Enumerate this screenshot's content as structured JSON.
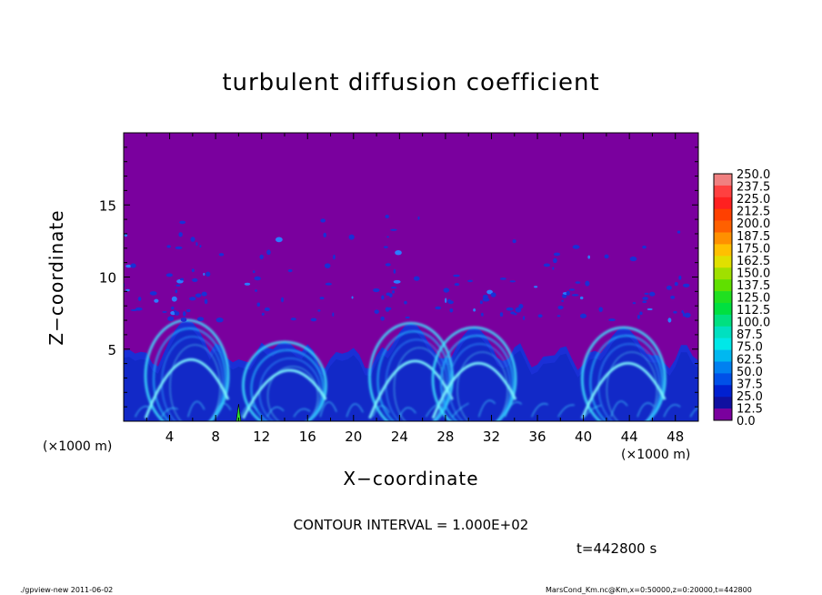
{
  "chart_data": {
    "type": "heatmap",
    "title": "turbulent diffusion coefficient",
    "xlabel": "X−coordinate",
    "ylabel": "Z−coordinate",
    "x_unit": "(×1000 m)",
    "y_unit": "(×1000 m)",
    "xlim": [
      0,
      50
    ],
    "ylim": [
      0,
      20
    ],
    "x_ticks": [
      4,
      8,
      12,
      16,
      20,
      24,
      28,
      32,
      36,
      40,
      44,
      48
    ],
    "y_ticks": [
      5,
      10,
      15
    ],
    "x_tick_labels": [
      "4",
      "8",
      "12",
      "16",
      "20",
      "24",
      "28",
      "32",
      "36",
      "40",
      "44",
      "48"
    ],
    "y_tick_labels": [
      "5",
      "10",
      "15"
    ],
    "background_value": 0.0,
    "turbulent_layer_top": 6.5,
    "plumes": [
      {
        "x": 5.5,
        "height": 7.0
      },
      {
        "x": 14.0,
        "height": 5.5
      },
      {
        "x": 25.0,
        "height": 6.8
      },
      {
        "x": 30.5,
        "height": 6.5
      },
      {
        "x": 43.5,
        "height": 6.5
      }
    ],
    "colorbar": {
      "levels": [
        "250.0",
        "237.5",
        "225.0",
        "212.5",
        "200.0",
        "187.5",
        "175.0",
        "162.5",
        "150.0",
        "137.5",
        "125.0",
        "112.5",
        "100.0",
        "87.5",
        "75.0",
        "62.5",
        "50.0",
        "37.5",
        "25.0",
        "12.5",
        "0.0"
      ],
      "colors": [
        "#f08080",
        "#ff4040",
        "#ff2020",
        "#ff4000",
        "#ff6000",
        "#ff9000",
        "#ffc000",
        "#e0e000",
        "#a0e000",
        "#60e000",
        "#20e020",
        "#00e040",
        "#00e080",
        "#00e0c0",
        "#00e8e8",
        "#00b8f0",
        "#0080f0",
        "#0050e8",
        "#0020d0",
        "#1010a0",
        "#7a009e"
      ]
    }
  },
  "contour_text": "CONTOUR INTERVAL = 1.000E+02",
  "time_text": "t=442800  s",
  "footer_left": "./gpview-new   2011-06-02",
  "footer_right": "MarsCond_Km.nc@Km,x=0:50000,z=0:20000,t=442800"
}
